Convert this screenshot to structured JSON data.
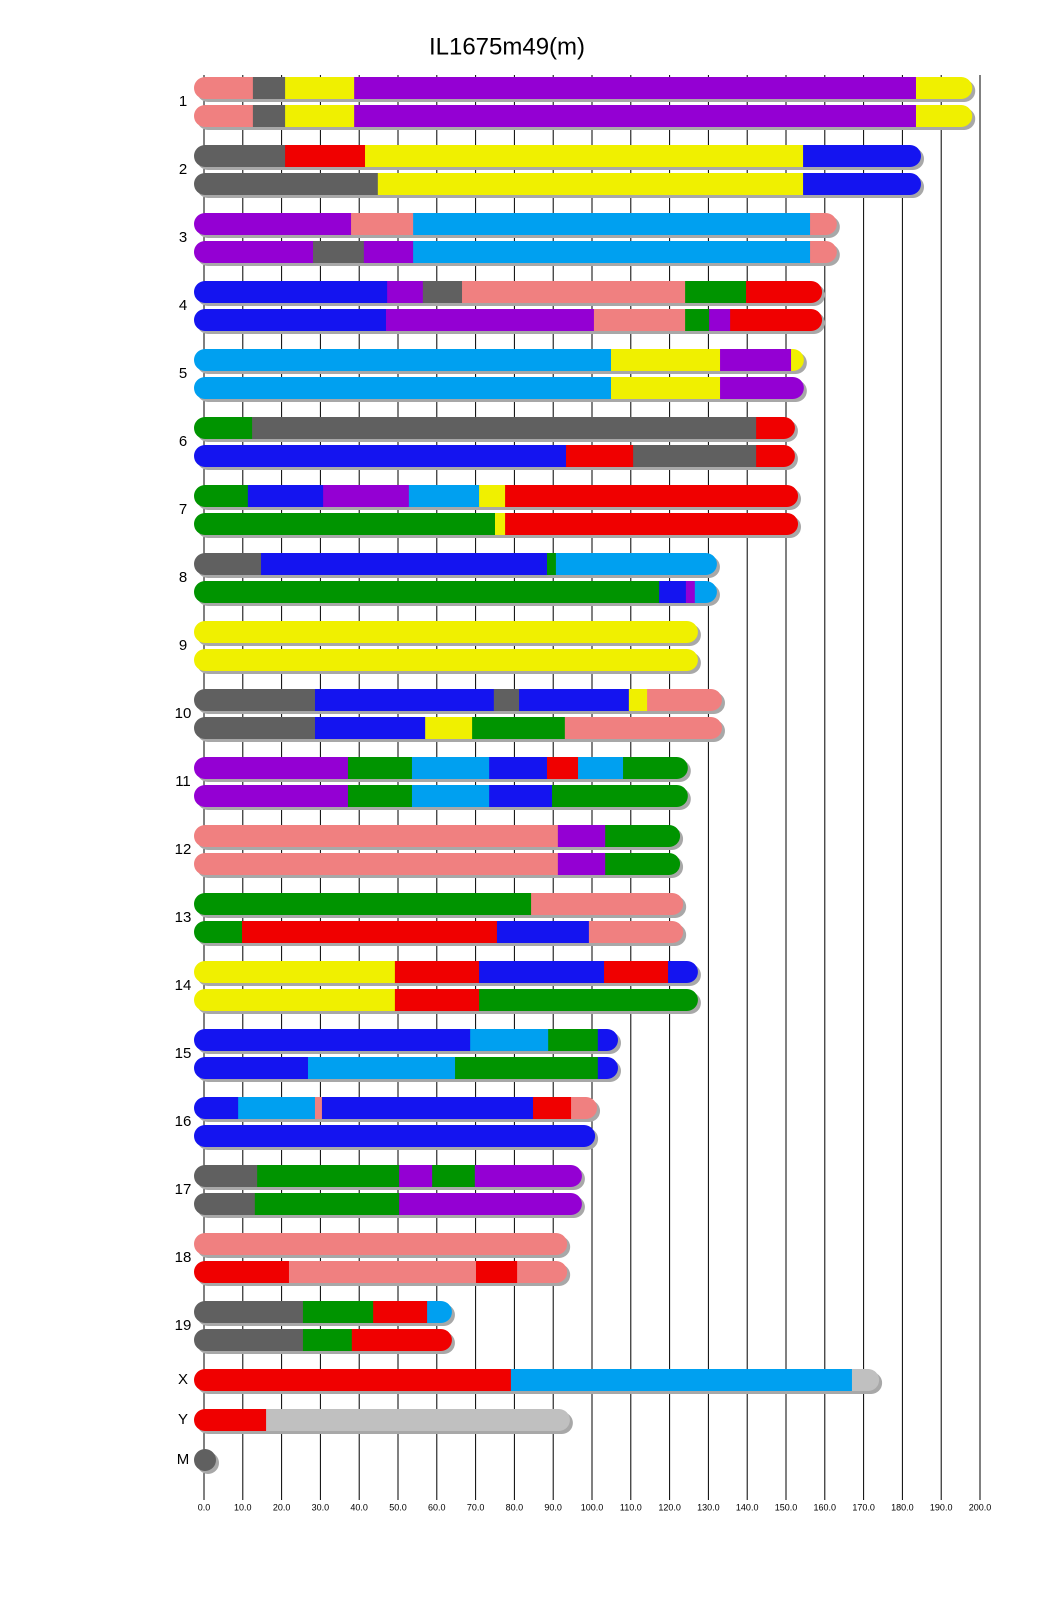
{
  "chart_data": {
    "type": "chromosome-painting",
    "title": "IL1675m49(m)",
    "xlim": [
      0,
      200
    ],
    "xticks": [
      {
        "value": 0,
        "label": "0.0"
      },
      {
        "value": 10,
        "label": "10.0"
      },
      {
        "value": 20,
        "label": "20.0"
      },
      {
        "value": 30,
        "label": "30.0"
      },
      {
        "value": 40,
        "label": "40.0"
      },
      {
        "value": 50,
        "label": "50.0"
      },
      {
        "value": 60,
        "label": "60.0"
      },
      {
        "value": 70,
        "label": "70.0"
      },
      {
        "value": 80,
        "label": "80.0"
      },
      {
        "value": 90,
        "label": "90.0"
      },
      {
        "value": 100,
        "label": "100.0"
      },
      {
        "value": 110,
        "label": "110.0"
      },
      {
        "value": 120,
        "label": "120.0"
      },
      {
        "value": 130,
        "label": "130.0"
      },
      {
        "value": 140,
        "label": "140.0"
      },
      {
        "value": 150,
        "label": "150.0"
      },
      {
        "value": 160,
        "label": "160.0"
      },
      {
        "value": 170,
        "label": "170.0"
      },
      {
        "value": 180,
        "label": "180.0"
      },
      {
        "value": 190,
        "label": "190.0"
      },
      {
        "value": 200,
        "label": "200.0"
      }
    ],
    "grid": true,
    "colors": {
      "pk": "#f08080",
      "gy": "#606060",
      "ye": "#f0f000",
      "pu": "#9400d3",
      "re": "#f00000",
      "bl": "#1414f0",
      "lb": "#00a0f0",
      "gr": "#009400",
      "lg": "#c0c0c0"
    },
    "chromosomes": [
      {
        "name": "1",
        "haplotypes": [
          [
            [
              12.6,
              "pk"
            ],
            [
              20.9,
              "gy"
            ],
            [
              38.7,
              "ye"
            ],
            [
              183.5,
              "pu"
            ],
            [
              198,
              "ye"
            ]
          ],
          [
            [
              12.6,
              "pk"
            ],
            [
              20.9,
              "gy"
            ],
            [
              38.7,
              "ye"
            ],
            [
              183.5,
              "pu"
            ],
            [
              198,
              "ye"
            ]
          ]
        ]
      },
      {
        "name": "2",
        "haplotypes": [
          [
            [
              20.9,
              "gy"
            ],
            [
              41.5,
              "re"
            ],
            [
              154.4,
              "ye"
            ],
            [
              184.8,
              "bl"
            ]
          ],
          [
            [
              44.8,
              "gy"
            ],
            [
              154.4,
              "ye"
            ],
            [
              184.8,
              "bl"
            ]
          ]
        ]
      },
      {
        "name": "3",
        "haplotypes": [
          [
            [
              37.9,
              "pu"
            ],
            [
              53.9,
              "pk"
            ],
            [
              156.2,
              "lb"
            ],
            [
              163.1,
              "pk"
            ]
          ],
          [
            [
              28.1,
              "pu"
            ],
            [
              41.2,
              "gy"
            ],
            [
              53.9,
              "pu"
            ],
            [
              156.2,
              "lb"
            ],
            [
              163.1,
              "pk"
            ]
          ]
        ]
      },
      {
        "name": "4",
        "haplotypes": [
          [
            [
              47.2,
              "bl"
            ],
            [
              56.4,
              "pu"
            ],
            [
              66.5,
              "gy"
            ],
            [
              124,
              "pk"
            ],
            [
              139.7,
              "gr"
            ],
            [
              159.3,
              "re"
            ]
          ],
          [
            [
              46.9,
              "bl"
            ],
            [
              100.5,
              "pu"
            ],
            [
              124,
              "pk"
            ],
            [
              130.2,
              "gr"
            ],
            [
              135.6,
              "pu"
            ],
            [
              159.3,
              "re"
            ]
          ]
        ]
      },
      {
        "name": "5",
        "haplotypes": [
          [
            [
              104.9,
              "lb"
            ],
            [
              133,
              "ye"
            ],
            [
              151.3,
              "pu"
            ],
            [
              154.6,
              "ye"
            ]
          ],
          [
            [
              104.9,
              "lb"
            ],
            [
              133,
              "ye"
            ],
            [
              154.6,
              "pu"
            ]
          ]
        ]
      },
      {
        "name": "6",
        "haplotypes": [
          [
            [
              12.4,
              "gr"
            ],
            [
              142.3,
              "gy"
            ],
            [
              152.3,
              "re"
            ]
          ],
          [
            [
              93.3,
              "bl"
            ],
            [
              110.6,
              "re"
            ],
            [
              142.3,
              "gy"
            ],
            [
              152.3,
              "re"
            ]
          ]
        ]
      },
      {
        "name": "7",
        "haplotypes": [
          [
            [
              11.3,
              "gr"
            ],
            [
              30.7,
              "bl"
            ],
            [
              52.8,
              "pu"
            ],
            [
              70.9,
              "lb"
            ],
            [
              77.6,
              "ye"
            ],
            [
              153.1,
              "re"
            ]
          ],
          [
            [
              75,
              "gr"
            ],
            [
              77.6,
              "ye"
            ],
            [
              153.1,
              "re"
            ]
          ]
        ]
      },
      {
        "name": "8",
        "haplotypes": [
          [
            [
              14.7,
              "gy"
            ],
            [
              88.4,
              "bl"
            ],
            [
              90.7,
              "gr"
            ],
            [
              132.2,
              "lb"
            ]
          ],
          [
            [
              117.3,
              "gr"
            ],
            [
              124.2,
              "bl"
            ],
            [
              126.5,
              "pu"
            ],
            [
              132.2,
              "lb"
            ]
          ]
        ]
      },
      {
        "name": "9",
        "haplotypes": [
          [
            [
              127.3,
              "ye"
            ]
          ],
          [
            [
              127.3,
              "ye"
            ]
          ]
        ]
      },
      {
        "name": "10",
        "haplotypes": [
          [
            [
              28.6,
              "gy"
            ],
            [
              74.7,
              "bl"
            ],
            [
              81.2,
              "gy"
            ],
            [
              109.5,
              "bl"
            ],
            [
              114.2,
              "ye"
            ],
            [
              133.5,
              "pk"
            ]
          ],
          [
            [
              28.6,
              "gy"
            ],
            [
              57,
              "bl"
            ],
            [
              69.1,
              "ye"
            ],
            [
              93,
              "gr"
            ],
            [
              133.5,
              "pk"
            ]
          ]
        ]
      },
      {
        "name": "11",
        "haplotypes": [
          [
            [
              37.1,
              "pu"
            ],
            [
              53.6,
              "gr"
            ],
            [
              73.5,
              "lb"
            ],
            [
              88.4,
              "bl"
            ],
            [
              96.4,
              "re"
            ],
            [
              108,
              "lb"
            ],
            [
              124.7,
              "gr"
            ]
          ],
          [
            [
              37.1,
              "pu"
            ],
            [
              53.6,
              "gr"
            ],
            [
              73.5,
              "lb"
            ],
            [
              89.7,
              "bl"
            ],
            [
              124.7,
              "gr"
            ]
          ]
        ]
      },
      {
        "name": "12",
        "haplotypes": [
          [
            [
              91.2,
              "pk"
            ],
            [
              103.4,
              "pu"
            ],
            [
              122.7,
              "gr"
            ]
          ],
          [
            [
              91.2,
              "pk"
            ],
            [
              103.4,
              "pu"
            ],
            [
              122.7,
              "gr"
            ]
          ]
        ]
      },
      {
        "name": "13",
        "haplotypes": [
          [
            [
              84.3,
              "gr"
            ],
            [
              123.5,
              "pk"
            ]
          ],
          [
            [
              9.8,
              "gr"
            ],
            [
              75.5,
              "re"
            ],
            [
              99.2,
              "bl"
            ],
            [
              123.5,
              "pk"
            ]
          ]
        ]
      },
      {
        "name": "14",
        "haplotypes": [
          [
            [
              49.2,
              "ye"
            ],
            [
              70.9,
              "re"
            ],
            [
              103.1,
              "bl"
            ],
            [
              119.6,
              "re"
            ],
            [
              127.3,
              "bl"
            ]
          ],
          [
            [
              49.2,
              "ye"
            ],
            [
              70.9,
              "re"
            ],
            [
              127.3,
              "gr"
            ]
          ]
        ]
      },
      {
        "name": "15",
        "haplotypes": [
          [
            [
              68.6,
              "bl"
            ],
            [
              88.7,
              "lb"
            ],
            [
              101.5,
              "gr"
            ],
            [
              106.7,
              "bl"
            ]
          ],
          [
            [
              26.8,
              "bl"
            ],
            [
              64.7,
              "lb"
            ],
            [
              101.5,
              "gr"
            ],
            [
              106.7,
              "bl"
            ]
          ]
        ]
      },
      {
        "name": "16",
        "haplotypes": [
          [
            [
              8.8,
              "bl"
            ],
            [
              28.6,
              "lb"
            ],
            [
              30.4,
              "pk"
            ],
            [
              84.8,
              "bl"
            ],
            [
              94.6,
              "re"
            ],
            [
              101.3,
              "pk"
            ]
          ],
          [
            [
              100.8,
              "bl"
            ]
          ]
        ]
      },
      {
        "name": "17",
        "haplotypes": [
          [
            [
              13.7,
              "gy"
            ],
            [
              50.3,
              "gr"
            ],
            [
              58.8,
              "pu"
            ],
            [
              69.8,
              "gr"
            ],
            [
              97.4,
              "pu"
            ]
          ],
          [
            [
              13.1,
              "gy"
            ],
            [
              50.3,
              "gr"
            ],
            [
              97.4,
              "pu"
            ]
          ]
        ]
      },
      {
        "name": "18",
        "haplotypes": [
          [
            [
              93.6,
              "pk"
            ]
          ],
          [
            [
              21.9,
              "re"
            ],
            [
              70.1,
              "pk"
            ],
            [
              80.7,
              "re"
            ],
            [
              93.6,
              "pk"
            ]
          ]
        ]
      },
      {
        "name": "19",
        "haplotypes": [
          [
            [
              25.5,
              "gy"
            ],
            [
              43.6,
              "gr"
            ],
            [
              57.5,
              "re"
            ],
            [
              63.9,
              "lb"
            ]
          ],
          [
            [
              25.5,
              "gy"
            ],
            [
              38.1,
              "gr"
            ],
            [
              63.9,
              "re"
            ]
          ]
        ]
      },
      {
        "name": "X",
        "haplotypes": [
          [
            [
              79.1,
              "re"
            ],
            [
              167,
              "lb"
            ],
            [
              174,
              "lg"
            ]
          ]
        ]
      },
      {
        "name": "Y",
        "haplotypes": [
          [
            [
              16,
              "re"
            ],
            [
              94.3,
              "lg"
            ]
          ]
        ]
      },
      {
        "name": "M",
        "haplotypes": [
          [
            [
              1,
              "gy"
            ]
          ]
        ]
      }
    ]
  }
}
